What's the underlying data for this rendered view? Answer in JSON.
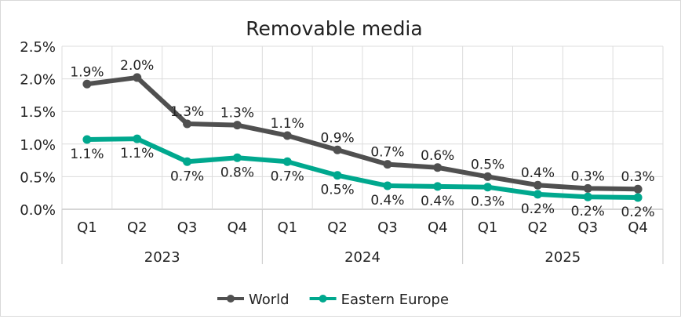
{
  "chart_data": {
    "type": "line",
    "title": "Removable media",
    "categories": [
      "Q1",
      "Q2",
      "Q3",
      "Q4",
      "Q1",
      "Q2",
      "Q3",
      "Q4",
      "Q1",
      "Q2",
      "Q3",
      "Q4"
    ],
    "groups": [
      {
        "label": "2023",
        "count": 4
      },
      {
        "label": "2024",
        "count": 4
      },
      {
        "label": "2025",
        "count": 4
      }
    ],
    "ylim": [
      0,
      2.5
    ],
    "yticks": [
      "0.0%",
      "0.5%",
      "1.0%",
      "1.5%",
      "2.0%",
      "2.5%"
    ],
    "grid": true,
    "legend": "bottom",
    "series": [
      {
        "name": "World",
        "color": "#505050",
        "values": [
          1.92,
          2.02,
          1.31,
          1.29,
          1.13,
          0.91,
          0.69,
          0.64,
          0.5,
          0.37,
          0.32,
          0.31
        ],
        "labels": [
          "1.9%",
          "2.0%",
          "1.3%",
          "1.3%",
          "1.1%",
          "0.9%",
          "0.7%",
          "0.6%",
          "0.5%",
          "0.4%",
          "0.3%",
          "0.3%"
        ],
        "label_position": "above"
      },
      {
        "name": "Eastern Europe",
        "color": "#00a88e",
        "values": [
          1.07,
          1.08,
          0.73,
          0.79,
          0.73,
          0.52,
          0.36,
          0.35,
          0.34,
          0.23,
          0.19,
          0.18
        ],
        "labels": [
          "1.1%",
          "1.1%",
          "0.7%",
          "0.8%",
          "0.7%",
          "0.5%",
          "0.4%",
          "0.4%",
          "0.3%",
          "0.2%",
          "0.2%",
          "0.2%"
        ],
        "label_position": "below"
      }
    ]
  }
}
